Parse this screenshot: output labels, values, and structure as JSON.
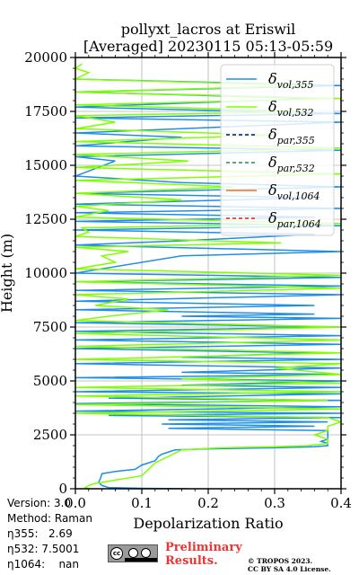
{
  "chart_data": {
    "type": "line",
    "title_line1": "pollyxt_lacros at Eriswil",
    "title_line2": "[Averaged] 20230115 05:13-05:59",
    "xlabel": "Depolarization Ratio",
    "ylabel": "Height (m)",
    "xlim": [
      0,
      0.4
    ],
    "ylim": [
      0,
      20000
    ],
    "xticks": [
      "0.0",
      "0.1",
      "0.2",
      "0.3",
      "0.4"
    ],
    "yticks": [
      "0",
      "2500",
      "5000",
      "7500",
      "10000",
      "12500",
      "15000",
      "17500",
      "20000"
    ],
    "grid": true,
    "legend_position": "top-right",
    "legend": [
      {
        "base": "δ",
        "sub": "vol,355",
        "color": "#1f8ee8",
        "dash": "solid"
      },
      {
        "base": "δ",
        "sub": "vol,532",
        "color": "#80ff00",
        "dash": "solid"
      },
      {
        "base": "δ",
        "sub": "par,355",
        "color": "#0000cc",
        "dash": "dashed"
      },
      {
        "base": "δ",
        "sub": "par,532",
        "color": "#1f8a5a",
        "dash": "dashed"
      },
      {
        "base": "δ",
        "sub": "vol,1064",
        "color": "#ff6a1a",
        "dash": "solid"
      },
      {
        "base": "δ",
        "sub": "par,1064",
        "color": "#dd2222",
        "dash": "dashed"
      }
    ],
    "series": [
      {
        "name": "δvol,355",
        "color": "#1f8ee8",
        "points": [
          [
            0.17,
            0
          ],
          [
            0.1,
            20
          ],
          [
            0.05,
            60
          ],
          [
            0.04,
            150
          ],
          [
            0.035,
            300
          ],
          [
            0.038,
            500
          ],
          [
            0.04,
            700
          ],
          [
            0.06,
            800
          ],
          [
            0.09,
            900
          ],
          [
            0.1,
            1100
          ],
          [
            0.12,
            1300
          ],
          [
            0.125,
            1500
          ],
          [
            0.13,
            1600
          ],
          [
            0.15,
            1800
          ],
          [
            0.2,
            1850
          ],
          [
            0.3,
            1900
          ],
          [
            0.36,
            1950
          ],
          [
            0.38,
            2000
          ],
          [
            0.38,
            2100
          ],
          [
            0.37,
            2200
          ],
          [
            0.38,
            2300
          ],
          [
            0.38,
            2500
          ],
          [
            0.38,
            2700
          ],
          [
            0.14,
            2800
          ],
          [
            0.36,
            2900
          ],
          [
            0.13,
            3000
          ],
          [
            0.38,
            3100
          ],
          [
            0.14,
            3200
          ],
          [
            0.4,
            3300
          ],
          [
            0.05,
            3400
          ],
          [
            0.4,
            3500
          ],
          [
            0.0,
            3600
          ],
          [
            0.4,
            3800
          ],
          [
            0.0,
            3950
          ],
          [
            0.4,
            4100
          ],
          [
            0.05,
            4200
          ],
          [
            0.4,
            4400
          ],
          [
            0.0,
            4500
          ],
          [
            0.4,
            4700
          ],
          [
            0.16,
            4800
          ],
          [
            0.4,
            5000
          ],
          [
            0.0,
            5150
          ],
          [
            0.4,
            5300
          ],
          [
            0.16,
            5400
          ],
          [
            0.4,
            5600
          ],
          [
            0.0,
            5800
          ],
          [
            0.4,
            6000
          ],
          [
            0.16,
            6100
          ],
          [
            0.36,
            6300
          ],
          [
            0.0,
            6500
          ],
          [
            0.4,
            6700
          ],
          [
            0.0,
            6900
          ],
          [
            0.4,
            7100
          ],
          [
            0.0,
            7300
          ],
          [
            0.4,
            7500
          ],
          [
            0.0,
            7700
          ],
          [
            0.4,
            7900
          ],
          [
            0.16,
            8000
          ],
          [
            0.36,
            8100
          ],
          [
            0.0,
            8300
          ],
          [
            0.36,
            8500
          ],
          [
            0.0,
            8700
          ],
          [
            0.4,
            9000
          ],
          [
            0.0,
            9200
          ],
          [
            0.4,
            9400
          ],
          [
            0.0,
            9600
          ],
          [
            0.4,
            9800
          ],
          [
            0.0,
            10000
          ],
          [
            0.16,
            10800
          ],
          [
            0.4,
            11000
          ],
          [
            0.0,
            11300
          ],
          [
            0.16,
            11500
          ],
          [
            0.36,
            11800
          ],
          [
            0.0,
            12000
          ],
          [
            0.4,
            12200
          ],
          [
            0.0,
            12400
          ],
          [
            0.36,
            12600
          ],
          [
            0.0,
            12800
          ],
          [
            0.4,
            13000
          ],
          [
            0.0,
            13200
          ],
          [
            0.36,
            13500
          ],
          [
            0.0,
            13700
          ],
          [
            0.4,
            14000
          ],
          [
            0.16,
            14200
          ],
          [
            0.0,
            14500
          ],
          [
            0.06,
            15200
          ],
          [
            0.0,
            15400
          ],
          [
            0.4,
            15700
          ],
          [
            0.0,
            15900
          ],
          [
            0.16,
            16300
          ],
          [
            0.0,
            16500
          ],
          [
            0.4,
            17000
          ],
          [
            0.0,
            17200
          ],
          [
            0.4,
            17400
          ],
          [
            0.0,
            17700
          ],
          [
            0.36,
            18100
          ],
          [
            0.0,
            18400
          ],
          [
            0.4,
            18700
          ],
          [
            0.0,
            19000
          ]
        ]
      },
      {
        "name": "δvol,532",
        "color": "#80ff00",
        "points": [
          [
            0.02,
            0
          ],
          [
            0.015,
            60
          ],
          [
            0.02,
            150
          ],
          [
            0.03,
            250
          ],
          [
            0.06,
            400
          ],
          [
            0.1,
            600
          ],
          [
            0.11,
            900
          ],
          [
            0.12,
            1200
          ],
          [
            0.14,
            1500
          ],
          [
            0.16,
            1800
          ],
          [
            0.22,
            1900
          ],
          [
            0.3,
            1950
          ],
          [
            0.35,
            2000
          ],
          [
            0.38,
            2100
          ],
          [
            0.38,
            2300
          ],
          [
            0.36,
            2500
          ],
          [
            0.38,
            2700
          ],
          [
            0.38,
            2900
          ],
          [
            0.4,
            3100
          ],
          [
            0.38,
            3300
          ],
          [
            0.0,
            3500
          ],
          [
            0.4,
            3700
          ],
          [
            0.0,
            3900
          ],
          [
            0.38,
            4100
          ],
          [
            0.0,
            4300
          ],
          [
            0.4,
            4500
          ],
          [
            0.0,
            4700
          ],
          [
            0.4,
            4900
          ],
          [
            0.16,
            5100
          ],
          [
            0.4,
            5300
          ],
          [
            0.3,
            5600
          ],
          [
            0.4,
            5800
          ],
          [
            0.0,
            6000
          ],
          [
            0.4,
            6300
          ],
          [
            0.0,
            6600
          ],
          [
            0.4,
            6900
          ],
          [
            0.0,
            7200
          ],
          [
            0.4,
            7500
          ],
          [
            0.0,
            7800
          ],
          [
            0.05,
            8000
          ],
          [
            0.14,
            8300
          ],
          [
            0.03,
            8500
          ],
          [
            0.08,
            8800
          ],
          [
            0.0,
            9000
          ],
          [
            0.4,
            9300
          ],
          [
            0.0,
            9600
          ],
          [
            0.4,
            9900
          ],
          [
            0.0,
            10200
          ],
          [
            0.06,
            10500
          ],
          [
            0.04,
            10800
          ],
          [
            0.08,
            11000
          ],
          [
            0.0,
            11200
          ],
          [
            0.31,
            11400
          ],
          [
            0.0,
            11700
          ],
          [
            0.02,
            11900
          ],
          [
            0.01,
            12100
          ],
          [
            0.4,
            12300
          ],
          [
            0.0,
            12600
          ],
          [
            0.05,
            12900
          ],
          [
            0.0,
            13100
          ],
          [
            0.16,
            13400
          ],
          [
            0.0,
            13700
          ],
          [
            0.24,
            14000
          ],
          [
            0.0,
            14300
          ],
          [
            0.4,
            14600
          ],
          [
            0.0,
            14900
          ],
          [
            0.17,
            15200
          ],
          [
            0.0,
            15500
          ],
          [
            0.4,
            15800
          ],
          [
            0.0,
            16100
          ],
          [
            0.3,
            16400
          ],
          [
            0.0,
            16700
          ],
          [
            0.06,
            17000
          ],
          [
            0.0,
            17300
          ],
          [
            0.36,
            17500
          ],
          [
            0.0,
            17800
          ],
          [
            0.4,
            18100
          ],
          [
            0.0,
            18400
          ],
          [
            0.36,
            18700
          ],
          [
            0.0,
            19000
          ],
          [
            0.02,
            19300
          ],
          [
            0.0,
            19500
          ],
          [
            0.01,
            19700
          ]
        ]
      }
    ]
  },
  "info": {
    "version": "Version: 3.0",
    "method": "Method: Raman",
    "eta355_label": "η355:",
    "eta355_value": "2.69",
    "eta532_label": "η532:",
    "eta532_value": "7.5001",
    "eta1064_label": "η1064:",
    "eta1064_value": "nan"
  },
  "footer": {
    "cc_text": "cc",
    "prelim_line1": "Preliminary",
    "prelim_line2": "Results.",
    "copyright_line1": "© TROPOS 2023.",
    "copyright_line2": "CC BY SA 4.0 License."
  }
}
